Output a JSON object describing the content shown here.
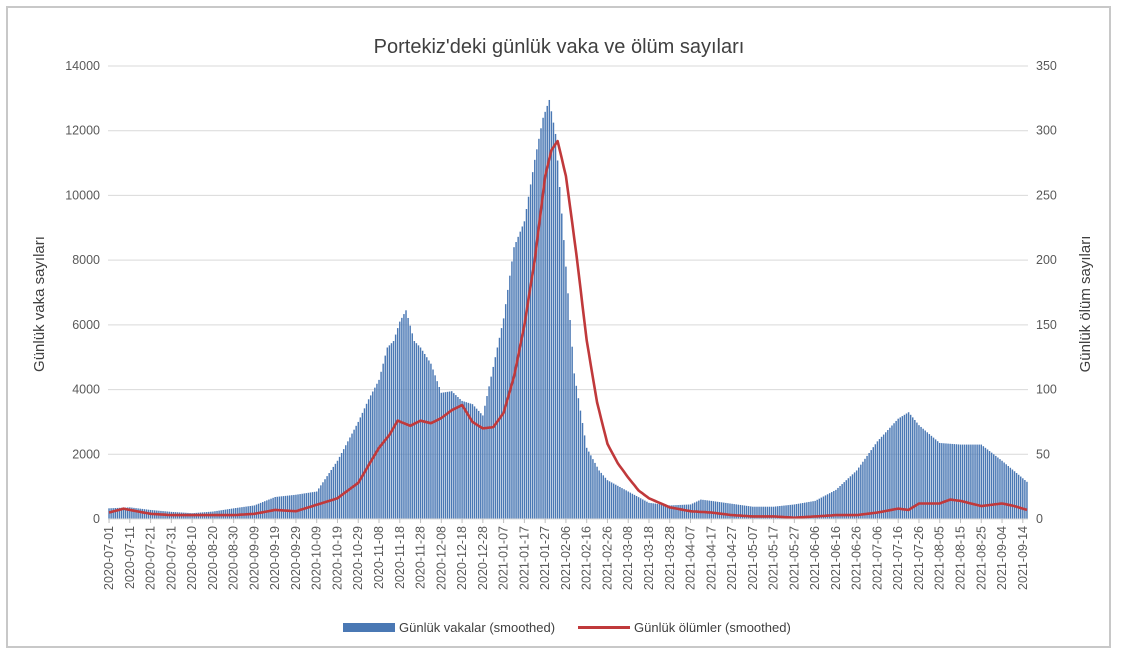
{
  "chart_data": {
    "type": "bar+line",
    "title": "Portekiz'deki günlük vaka ve ölüm sayıları",
    "ylabel_left": "Günlük vaka sayıları",
    "ylabel_right": "Günlük ölüm sayıları",
    "ylim_left": [
      0,
      14000
    ],
    "ylim_right": [
      0,
      350
    ],
    "yticks_left": [
      "0",
      "2000",
      "4000",
      "6000",
      "8000",
      "10000",
      "12000",
      "14000"
    ],
    "yticks_right": [
      "0",
      "50",
      "100",
      "150",
      "200",
      "250",
      "300",
      "350"
    ],
    "x_start": "2020-07-01",
    "x_end": "2021-09-16",
    "x_ticks": [
      "2020-07-01",
      "2020-07-11",
      "2020-07-21",
      "2020-07-31",
      "2020-08-10",
      "2020-08-20",
      "2020-08-30",
      "2020-09-09",
      "2020-09-19",
      "2020-09-29",
      "2020-10-09",
      "2020-10-19",
      "2020-10-29",
      "2020-11-08",
      "2020-11-18",
      "2020-11-28",
      "2020-12-08",
      "2020-12-18",
      "2020-12-28",
      "2021-01-07",
      "2021-01-17",
      "2021-01-27",
      "2021-02-06",
      "2021-02-16",
      "2021-02-26",
      "2021-03-08",
      "2021-03-18",
      "2021-03-28",
      "2021-04-07",
      "2021-04-17",
      "2021-04-27",
      "2021-05-07",
      "2021-05-17",
      "2021-05-27",
      "2021-06-06",
      "2021-06-16",
      "2021-06-26",
      "2021-07-06",
      "2021-07-16",
      "2021-07-26",
      "2021-08-05",
      "2021-08-15",
      "2021-08-25",
      "2021-09-04",
      "2021-09-14"
    ],
    "grid": true,
    "legend_position": "bottom",
    "series": [
      {
        "name": "Günlük vakalar (smoothed)",
        "type": "bar",
        "axis": "left",
        "color": "#4a78b4",
        "points": [
          [
            "2020-07-01",
            330
          ],
          [
            "2020-07-11",
            360
          ],
          [
            "2020-07-21",
            280
          ],
          [
            "2020-07-31",
            220
          ],
          [
            "2020-08-10",
            180
          ],
          [
            "2020-08-20",
            230
          ],
          [
            "2020-08-30",
            330
          ],
          [
            "2020-09-09",
            420
          ],
          [
            "2020-09-19",
            680
          ],
          [
            "2020-09-29",
            750
          ],
          [
            "2020-10-09",
            850
          ],
          [
            "2020-10-19",
            1800
          ],
          [
            "2020-10-29",
            3000
          ],
          [
            "2020-11-03",
            3700
          ],
          [
            "2020-11-08",
            4300
          ],
          [
            "2020-11-12",
            5300
          ],
          [
            "2020-11-15",
            5500
          ],
          [
            "2020-11-18",
            6100
          ],
          [
            "2020-11-21",
            6450
          ],
          [
            "2020-11-25",
            5500
          ],
          [
            "2020-11-28",
            5300
          ],
          [
            "2020-12-03",
            4800
          ],
          [
            "2020-12-08",
            3900
          ],
          [
            "2020-12-13",
            3950
          ],
          [
            "2020-12-18",
            3650
          ],
          [
            "2020-12-23",
            3550
          ],
          [
            "2020-12-28",
            3200
          ],
          [
            "2021-01-02",
            4700
          ],
          [
            "2021-01-07",
            6200
          ],
          [
            "2021-01-12",
            8400
          ],
          [
            "2021-01-17",
            9200
          ],
          [
            "2021-01-22",
            11100
          ],
          [
            "2021-01-26",
            12400
          ],
          [
            "2021-01-29",
            12950
          ],
          [
            "2021-02-01",
            11900
          ],
          [
            "2021-02-06",
            7800
          ],
          [
            "2021-02-10",
            4500
          ],
          [
            "2021-02-16",
            2200
          ],
          [
            "2021-02-22",
            1500
          ],
          [
            "2021-02-26",
            1200
          ],
          [
            "2021-03-08",
            850
          ],
          [
            "2021-03-18",
            500
          ],
          [
            "2021-03-28",
            420
          ],
          [
            "2021-04-07",
            450
          ],
          [
            "2021-04-12",
            600
          ],
          [
            "2021-04-17",
            560
          ],
          [
            "2021-04-27",
            470
          ],
          [
            "2021-05-07",
            380
          ],
          [
            "2021-05-17",
            380
          ],
          [
            "2021-05-27",
            450
          ],
          [
            "2021-06-06",
            560
          ],
          [
            "2021-06-16",
            900
          ],
          [
            "2021-06-26",
            1500
          ],
          [
            "2021-07-06",
            2400
          ],
          [
            "2021-07-16",
            3100
          ],
          [
            "2021-07-21",
            3300
          ],
          [
            "2021-07-26",
            2900
          ],
          [
            "2021-08-05",
            2350
          ],
          [
            "2021-08-15",
            2300
          ],
          [
            "2021-08-25",
            2300
          ],
          [
            "2021-09-04",
            1800
          ],
          [
            "2021-09-16",
            1150
          ]
        ]
      },
      {
        "name": "Günlük ölümler (smoothed)",
        "type": "line",
        "axis": "right",
        "color": "#c0393b",
        "points": [
          [
            "2020-07-01",
            5
          ],
          [
            "2020-07-08",
            8
          ],
          [
            "2020-07-11",
            7
          ],
          [
            "2020-07-21",
            4
          ],
          [
            "2020-07-31",
            3
          ],
          [
            "2020-08-10",
            3
          ],
          [
            "2020-08-20",
            3
          ],
          [
            "2020-08-30",
            3
          ],
          [
            "2020-09-09",
            4
          ],
          [
            "2020-09-19",
            7
          ],
          [
            "2020-09-29",
            6
          ],
          [
            "2020-10-09",
            11
          ],
          [
            "2020-10-19",
            16
          ],
          [
            "2020-10-29",
            28
          ],
          [
            "2020-11-08",
            55
          ],
          [
            "2020-11-13",
            65
          ],
          [
            "2020-11-17",
            76
          ],
          [
            "2020-11-23",
            72
          ],
          [
            "2020-11-28",
            76
          ],
          [
            "2020-12-03",
            74
          ],
          [
            "2020-12-08",
            78
          ],
          [
            "2020-12-13",
            84
          ],
          [
            "2020-12-18",
            88
          ],
          [
            "2020-12-23",
            75
          ],
          [
            "2020-12-28",
            70
          ],
          [
            "2021-01-02",
            71
          ],
          [
            "2021-01-07",
            82
          ],
          [
            "2021-01-12",
            110
          ],
          [
            "2021-01-17",
            150
          ],
          [
            "2021-01-22",
            200
          ],
          [
            "2021-01-27",
            265
          ],
          [
            "2021-01-30",
            285
          ],
          [
            "2021-02-02",
            292
          ],
          [
            "2021-02-06",
            265
          ],
          [
            "2021-02-11",
            205
          ],
          [
            "2021-02-16",
            138
          ],
          [
            "2021-02-21",
            90
          ],
          [
            "2021-02-26",
            58
          ],
          [
            "2021-03-03",
            43
          ],
          [
            "2021-03-08",
            32
          ],
          [
            "2021-03-13",
            22
          ],
          [
            "2021-03-18",
            16
          ],
          [
            "2021-03-28",
            9
          ],
          [
            "2021-04-07",
            6
          ],
          [
            "2021-04-17",
            5
          ],
          [
            "2021-04-27",
            3
          ],
          [
            "2021-05-07",
            2
          ],
          [
            "2021-05-17",
            2
          ],
          [
            "2021-05-27",
            1
          ],
          [
            "2021-06-06",
            2
          ],
          [
            "2021-06-16",
            3
          ],
          [
            "2021-06-26",
            3
          ],
          [
            "2021-07-06",
            5
          ],
          [
            "2021-07-16",
            8
          ],
          [
            "2021-07-21",
            7
          ],
          [
            "2021-07-26",
            12
          ],
          [
            "2021-08-05",
            12
          ],
          [
            "2021-08-10",
            15
          ],
          [
            "2021-08-15",
            14
          ],
          [
            "2021-08-25",
            10
          ],
          [
            "2021-09-04",
            12
          ],
          [
            "2021-09-10",
            10
          ],
          [
            "2021-09-16",
            7
          ]
        ]
      }
    ]
  }
}
